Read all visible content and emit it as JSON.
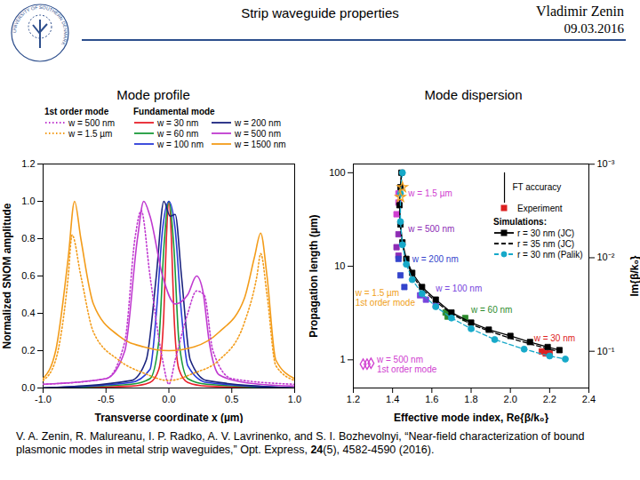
{
  "slide": {
    "title": "Strip waveguide properties",
    "author": "Vladimir Zenin",
    "date": "09.03.2016",
    "logo_text": "UNIVERSITY OF SOUTHERN DENMARK",
    "citation": {
      "text_before": "V. A. Zenin, R. Malureanu, I. P. Radko, A. V. Lavrinenko, and S. I. Bozhevolnyi, “Near-field characterization of bound plasmonic modes in metal strip waveguides,” Opt. Express, ",
      "volume": "24",
      "text_after": "(5), 4582-4590 (2016)."
    }
  },
  "chart_data": [
    {
      "type": "line",
      "title": "Mode profile",
      "x_label": "Transverse coordinate x (µm)",
      "y_label": "Normalized SNOM amplitude",
      "xlim": [
        -1,
        1
      ],
      "xticks": [
        {
          "value": -1,
          "label": "-1.0"
        },
        -0.5,
        {
          "value": 0,
          "label": "0.0"
        },
        0.5,
        {
          "value": 1,
          "label": "1.0"
        }
      ],
      "ylim": [
        0,
        1.2
      ],
      "yticks": [
        {
          "value": 0,
          "label": "0.0"
        },
        0.2,
        0.4,
        0.6,
        0.8,
        {
          "value": 1,
          "label": "1.0"
        },
        1.2
      ],
      "legend_groups": [
        {
          "title": "1st order mode",
          "series": [
            6,
            7
          ]
        },
        {
          "title": "Fundamental mode",
          "series": [
            0,
            1,
            2,
            3,
            4,
            5
          ]
        }
      ],
      "series": [
        {
          "name": "w = 30 nm",
          "color": "#e8202a",
          "line_style": "solid",
          "x": [
            -1,
            -0.3,
            -0.15,
            -0.08,
            -0.04,
            -0.02,
            0,
            0.02,
            0.04,
            0.08,
            0.15,
            0.3,
            1
          ],
          "values": [
            0,
            0.01,
            0.03,
            0.1,
            0.4,
            0.8,
            1.0,
            0.8,
            0.4,
            0.1,
            0.03,
            0.01,
            0
          ]
        },
        {
          "name": "w = 60 nm",
          "color": "#1a9a3a",
          "line_style": "solid",
          "x": [
            -1,
            -0.3,
            -0.15,
            -0.08,
            -0.04,
            0,
            0.04,
            0.08,
            0.15,
            0.3,
            1
          ],
          "values": [
            0,
            0.02,
            0.05,
            0.25,
            0.75,
            1.0,
            0.75,
            0.25,
            0.05,
            0.02,
            0
          ]
        },
        {
          "name": "w = 100 nm",
          "color": "#2a3ad8",
          "line_style": "solid",
          "x": [
            -1,
            -0.3,
            -0.15,
            -0.1,
            -0.05,
            0,
            0.05,
            0.1,
            0.15,
            0.3,
            1
          ],
          "values": [
            0,
            0.03,
            0.1,
            0.4,
            0.85,
            1.0,
            0.85,
            0.4,
            0.12,
            0.03,
            0
          ]
        },
        {
          "name": "w = 200 nm",
          "color": "#1a237e",
          "line_style": "solid",
          "x": [
            -1,
            -0.3,
            -0.18,
            -0.1,
            -0.04,
            0.01,
            0.05,
            0.1,
            0.17,
            0.3,
            1
          ],
          "values": [
            0,
            0.04,
            0.15,
            0.6,
            1.0,
            0.92,
            0.93,
            0.6,
            0.15,
            0.04,
            0
          ]
        },
        {
          "name": "w = 500 nm",
          "color": "#c03ad0",
          "line_style": "solid",
          "x": [
            -1,
            -0.5,
            -0.35,
            -0.25,
            -0.2,
            -0.15,
            -0.05,
            0.05,
            0.15,
            0.22,
            0.27,
            0.32,
            0.4,
            0.6,
            1
          ],
          "values": [
            0.02,
            0.05,
            0.2,
            0.8,
            1.0,
            0.92,
            0.6,
            0.45,
            0.5,
            0.6,
            0.52,
            0.25,
            0.07,
            0.03,
            0.01
          ]
        },
        {
          "name": "w = 1500 nm",
          "color": "#f39c1a",
          "line_style": "solid",
          "x": [
            -1,
            -0.9,
            -0.8,
            -0.75,
            -0.7,
            -0.6,
            -0.4,
            -0.2,
            0,
            0.2,
            0.4,
            0.6,
            0.68,
            0.73,
            0.78,
            0.85,
            1
          ],
          "values": [
            0.05,
            0.2,
            0.7,
            1.0,
            0.8,
            0.45,
            0.28,
            0.22,
            0.2,
            0.22,
            0.3,
            0.48,
            0.7,
            0.83,
            0.6,
            0.15,
            0.05
          ]
        },
        {
          "name": "w = 500 nm",
          "color": "#c03ad0",
          "line_style": "dotted",
          "x": [
            -1,
            -0.5,
            -0.35,
            -0.27,
            -0.22,
            -0.15,
            -0.05,
            0,
            0.05,
            0.15,
            0.22,
            0.28,
            0.35,
            0.5,
            1
          ],
          "values": [
            0.02,
            0.05,
            0.25,
            0.8,
            0.95,
            0.6,
            0.15,
            0.02,
            0.15,
            0.4,
            0.52,
            0.5,
            0.2,
            0.05,
            0.02
          ]
        },
        {
          "name": "w = 1.5 µm",
          "color": "#f39c1a",
          "line_style": "dotted",
          "x": [
            -1,
            -0.9,
            -0.8,
            -0.77,
            -0.7,
            -0.6,
            -0.4,
            -0.2,
            0,
            0.2,
            0.4,
            0.6,
            0.7,
            0.73,
            0.78,
            0.85,
            1
          ],
          "values": [
            0.04,
            0.15,
            0.6,
            0.82,
            0.6,
            0.3,
            0.15,
            0.08,
            0.04,
            0.08,
            0.15,
            0.35,
            0.6,
            0.72,
            0.5,
            0.12,
            0.04
          ]
        }
      ]
    },
    {
      "type": "scatter",
      "title": "Mode dispersion",
      "log": "y",
      "x_label": "Effective mode index, Re{β/k₀}",
      "y_label": "Propagation length (µm)",
      "y2_label": "Im{β/k₀}",
      "xlim": [
        1.2,
        2.4
      ],
      "xticks": [
        1.2,
        1.4,
        1.6,
        1.8,
        {
          "value": 2,
          "label": "2.0"
        },
        2.2,
        2.4
      ],
      "ylim": [
        0.5,
        124
      ],
      "yticks": [
        1,
        10,
        100
      ],
      "y2lim": [
        0.247,
        0.000995
      ],
      "y2ticks": [
        {
          "value": 0.001,
          "label": "10⁻³"
        },
        {
          "value": 0.01,
          "label": "10⁻²"
        },
        {
          "value": 0.1,
          "label": "10⁻¹"
        }
      ],
      "legend_groups": [
        {
          "series": [
            0
          ]
        },
        {
          "title": "Simulations:",
          "series": [
            1,
            2,
            3
          ]
        }
      ],
      "series": [
        {
          "name": "Experiment",
          "type": "scatter",
          "marker": "square",
          "color": "#dd2222",
          "x": [
            1.43,
            1.43,
            1.42,
            1.43,
            1.42,
            1.43,
            1.43,
            1.44,
            1.46,
            1.54,
            1.57,
            1.62,
            1.67,
            1.68,
            1.77,
            2.16,
            2.18,
            2.2
          ],
          "values": [
            60,
            48,
            36,
            22,
            16,
            13,
            12,
            8,
            6,
            4.9,
            4.4,
            3.8,
            3.2,
            2.9,
            2.8,
            1.23,
            1.17,
            1.17
          ],
          "colors": [
            "#d040d0",
            "#d040d0",
            "#d040d0",
            "#8e2cb5",
            "#8e2cb5",
            "#8e2cb5",
            "#3344cc",
            "#3344cc",
            "#3344cc",
            "#7744dd",
            "#7744dd",
            "#7744dd",
            "#2e8b2e",
            "#2e8b2e",
            "#2e8b2e",
            "#dd2222",
            "#dd2222",
            "#dd2222"
          ]
        },
        {
          "name": "r = 30 nm (JC)",
          "type": "line",
          "marker": "square",
          "line_style": "solid",
          "color": "#000000",
          "x": [
            1.445,
            1.44,
            1.435,
            1.44,
            1.45,
            1.47,
            1.5,
            1.55,
            1.62,
            1.7,
            1.8,
            1.89,
            2.0,
            2.1,
            2.19,
            2.25
          ],
          "values": [
            100,
            70,
            45,
            28,
            18,
            12,
            8.5,
            6,
            4.4,
            3.2,
            2.5,
            2.1,
            1.8,
            1.55,
            1.37,
            1.27
          ]
        },
        {
          "name": "r = 35 nm (JC)",
          "type": "line",
          "line_style": "dashed",
          "color": "#000000",
          "x": [
            1.445,
            1.44,
            1.435,
            1.44,
            1.45,
            1.47,
            1.5,
            1.55,
            1.62,
            1.7,
            1.8,
            1.9,
            2.0,
            2.1,
            2.2,
            2.26
          ],
          "values": [
            95,
            65,
            42,
            26,
            17,
            11.5,
            8,
            5.7,
            4.2,
            3.1,
            2.4,
            2.0,
            1.7,
            1.48,
            1.3,
            1.2
          ]
        },
        {
          "name": "r = 30 nm (Palik)",
          "type": "line",
          "marker": "circle",
          "line_style": "dashed",
          "color": "#17a9c9",
          "x": [
            1.45,
            1.44,
            1.44,
            1.45,
            1.47,
            1.5,
            1.55,
            1.62,
            1.7,
            1.8,
            1.92,
            2.07,
            2.2,
            2.28
          ],
          "values": [
            100,
            60,
            30,
            17,
            10.5,
            7.2,
            5.1,
            3.7,
            2.8,
            2.15,
            1.65,
            1.3,
            1.1,
            1.02
          ]
        },
        {
          "type": "scatter",
          "marker": "diamond-open",
          "color": "#d040d0",
          "x": [
            1.25,
            1.27,
            1.29
          ],
          "values": [
            0.9,
            0.9,
            0.92
          ]
        },
        {
          "type": "scatter",
          "marker": "star-open",
          "color": "#f0a020",
          "x": [
            1.44,
            1.45
          ],
          "values": [
            55,
            70
          ]
        }
      ],
      "annotations": [
        {
          "text": "w = 1.5 µm",
          "x": 1.48,
          "y": 60,
          "color": "#d040d0"
        },
        {
          "text": "w = 500 nm",
          "x": 1.48,
          "y": 25,
          "color": "#8e2cb5"
        },
        {
          "text": "w = 200 nm",
          "x": 1.5,
          "y": 12,
          "color": "#3344cc"
        },
        {
          "text": "w = 100 nm",
          "x": 1.62,
          "y": 5.8,
          "color": "#7744dd"
        },
        {
          "text": "w = 60 nm",
          "x": 1.8,
          "y": 3.4,
          "color": "#2e8b2e"
        },
        {
          "text": "w = 30 nm",
          "x": 2.12,
          "y": 1.7,
          "color": "#dd2222"
        },
        {
          "text": "w = 1.5 µm\n1st order mode",
          "x": 1.21,
          "y": 4.6,
          "color": "#f0a020"
        },
        {
          "text": "w = 500 nm\n1st order mode",
          "x": 1.32,
          "y": 0.9,
          "color": "#d040d0"
        },
        {
          "text": "FT accuracy",
          "x": 2.01,
          "y": 70,
          "color": "#000000",
          "arrow": {
            "x": 1.97,
            "y1": 100,
            "y2": 40
          }
        }
      ]
    }
  ]
}
